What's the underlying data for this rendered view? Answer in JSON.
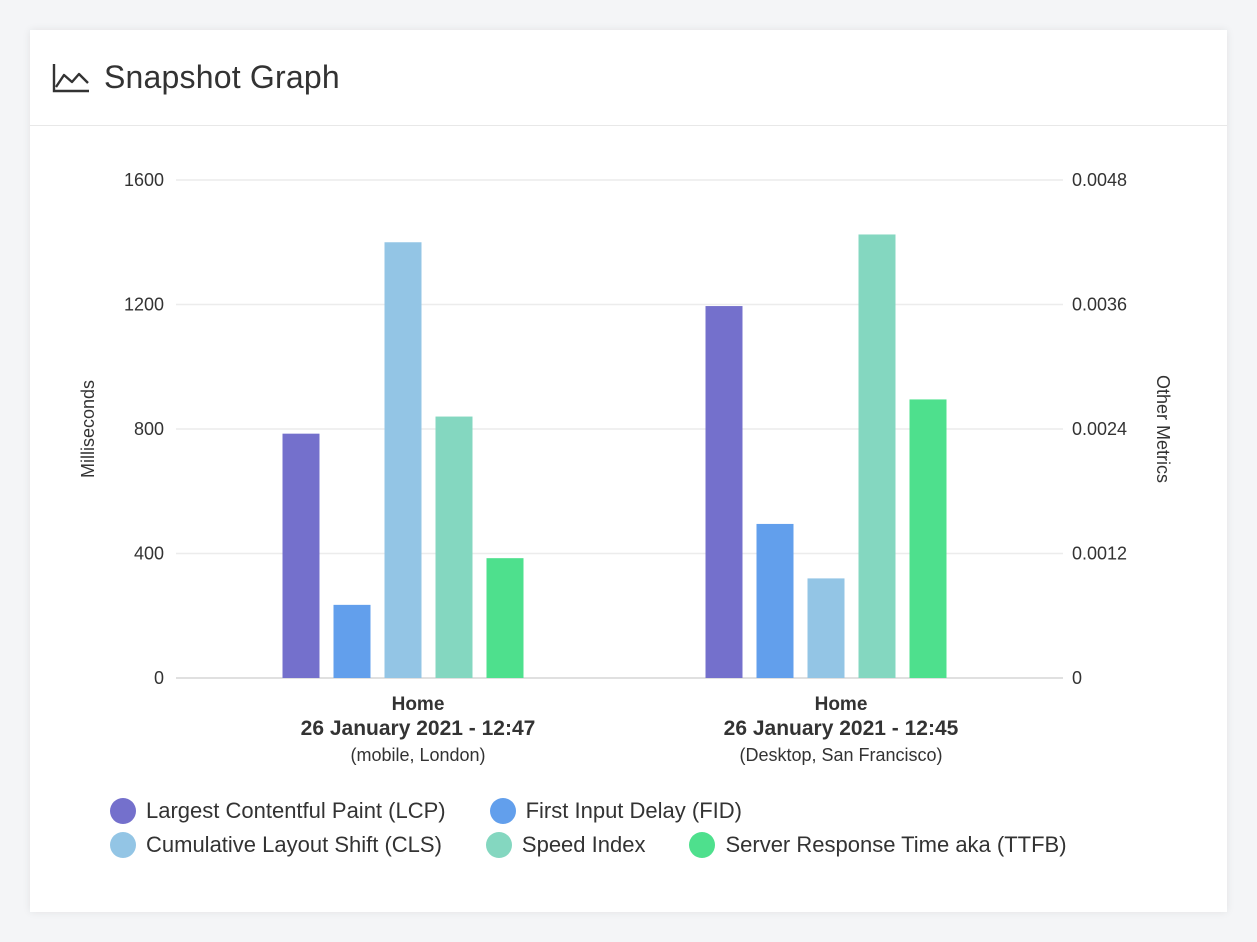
{
  "header": {
    "title": "Snapshot Graph",
    "icon": "area-chart-icon"
  },
  "chart_data": {
    "type": "bar",
    "categories": [
      {
        "name": "Home",
        "date": "26 January 2021 - 12:47",
        "sub": "(mobile, London)"
      },
      {
        "name": "Home",
        "date": "26 January 2021 - 12:45",
        "sub": "(Desktop, San Francisco)"
      }
    ],
    "ylabel": "Milliseconds",
    "y2label": "Other Metrics",
    "ylim": [
      0,
      1600
    ],
    "y2lim": [
      0,
      0.0048
    ],
    "yticks": [
      "0",
      "400",
      "800",
      "1200",
      "1600"
    ],
    "y2ticks": [
      "0",
      "0.0012",
      "0.0024",
      "0.0036",
      "0.0048"
    ],
    "grid": true,
    "legend_position": "bottom",
    "series": [
      {
        "name": "Largest Contentful Paint (LCP)",
        "color": "#7470cc",
        "axis": "left",
        "values": [
          785,
          1195
        ]
      },
      {
        "name": "First Input Delay (FID)",
        "color": "#629fec",
        "axis": "left",
        "values": [
          235,
          495
        ]
      },
      {
        "name": "Cumulative Layout Shift (CLS)",
        "color": "#93c5e5",
        "axis": "right",
        "values": [
          0.0042,
          0.00096
        ]
      },
      {
        "name": "Speed Index",
        "color": "#84d7c0",
        "axis": "left",
        "values": [
          840,
          1425
        ]
      },
      {
        "name": "Server Response Time aka (TTFB)",
        "color": "#4ee08d",
        "axis": "left",
        "values": [
          385,
          895
        ]
      }
    ]
  }
}
